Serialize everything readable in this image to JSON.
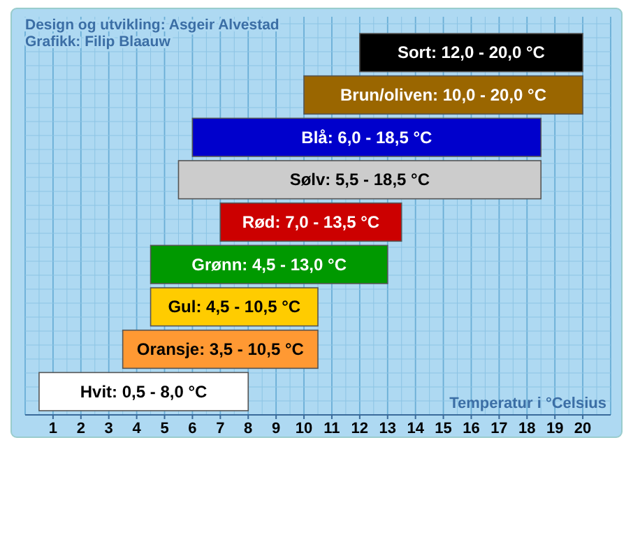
{
  "chart_data": {
    "type": "bar",
    "orientation": "horizontal",
    "xlabel": "Temperatur i °Celsius",
    "annotations": [
      "Design og utvikling: Asgeir Alvestad",
      "Grafikk: Filip Blaauw"
    ],
    "categories": [
      "Sort: 12,0 - 20,0 °C",
      "Brun/oliven: 10,0 - 20,0 °C",
      "Blå: 6,0 - 18,5 °C",
      "Sølv: 5,5 - 18,5 °C",
      "Rød: 7,0 - 13,5 °C",
      "Grønn: 4,5 - 13,0 °C",
      "Gul: 4,5 - 10,5 °C",
      "Oransje: 3,5 - 10,5 °C",
      "Hvit: 0,5 - 8,0 °C"
    ],
    "base": [
      12,
      10,
      6,
      5.5,
      7,
      4.5,
      4.5,
      3.5,
      0.5
    ],
    "values": [
      8,
      10,
      12.5,
      13,
      6.5,
      8.5,
      6,
      7,
      7.5
    ],
    "colors": [
      "#000000",
      "#9a6600",
      "#0000cc",
      "#cccccc",
      "#cc0000",
      "#009900",
      "#ffcc00",
      "#ff9933",
      "#ffffff"
    ],
    "xlim": [
      0,
      21
    ],
    "xticks": [
      1,
      2,
      3,
      4,
      5,
      6,
      7,
      8,
      9,
      10,
      11,
      12,
      13,
      14,
      15,
      16,
      17,
      18,
      19,
      20
    ],
    "grid": true
  }
}
